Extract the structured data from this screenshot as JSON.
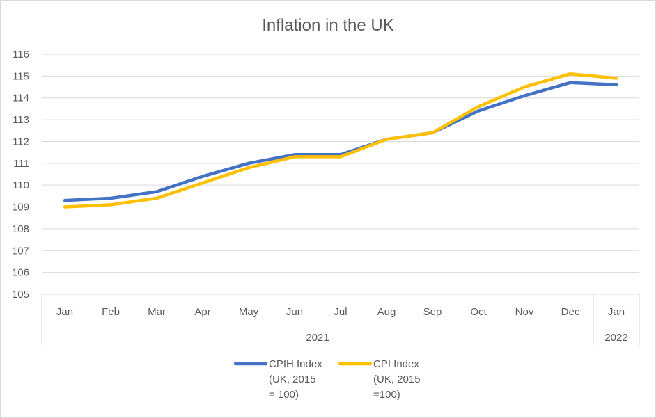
{
  "chart_data": {
    "type": "line",
    "title": "Inflation in the UK",
    "categories": [
      "Jan",
      "Feb",
      "Mar",
      "Apr",
      "May",
      "Jun",
      "Jul",
      "Aug",
      "Sep",
      "Oct",
      "Nov",
      "Dec",
      "Jan"
    ],
    "year_groups": [
      {
        "label": "2021",
        "span": 12
      },
      {
        "label": "2022",
        "span": 1
      }
    ],
    "ylim": [
      105,
      116
    ],
    "yticks": [
      "105",
      "106",
      "107",
      "108",
      "109",
      "110",
      "111",
      "112",
      "113",
      "114",
      "115",
      "116"
    ],
    "grid": true,
    "legend_position": "bottom",
    "series": [
      {
        "name_lines": [
          "CPIH Index",
          "(UK, 2015",
          "= 100)"
        ],
        "color": "#4472c4",
        "values": [
          109.3,
          109.4,
          109.7,
          110.4,
          111.0,
          111.4,
          111.4,
          112.1,
          112.4,
          113.4,
          114.1,
          114.7,
          114.6
        ]
      },
      {
        "name_lines": [
          "CPI Index",
          "(UK, 2015",
          "=100)"
        ],
        "color": "#ffc000",
        "values": [
          109.0,
          109.1,
          109.4,
          110.1,
          110.8,
          111.3,
          111.3,
          112.1,
          112.4,
          113.6,
          114.5,
          115.1,
          114.9
        ]
      }
    ]
  }
}
